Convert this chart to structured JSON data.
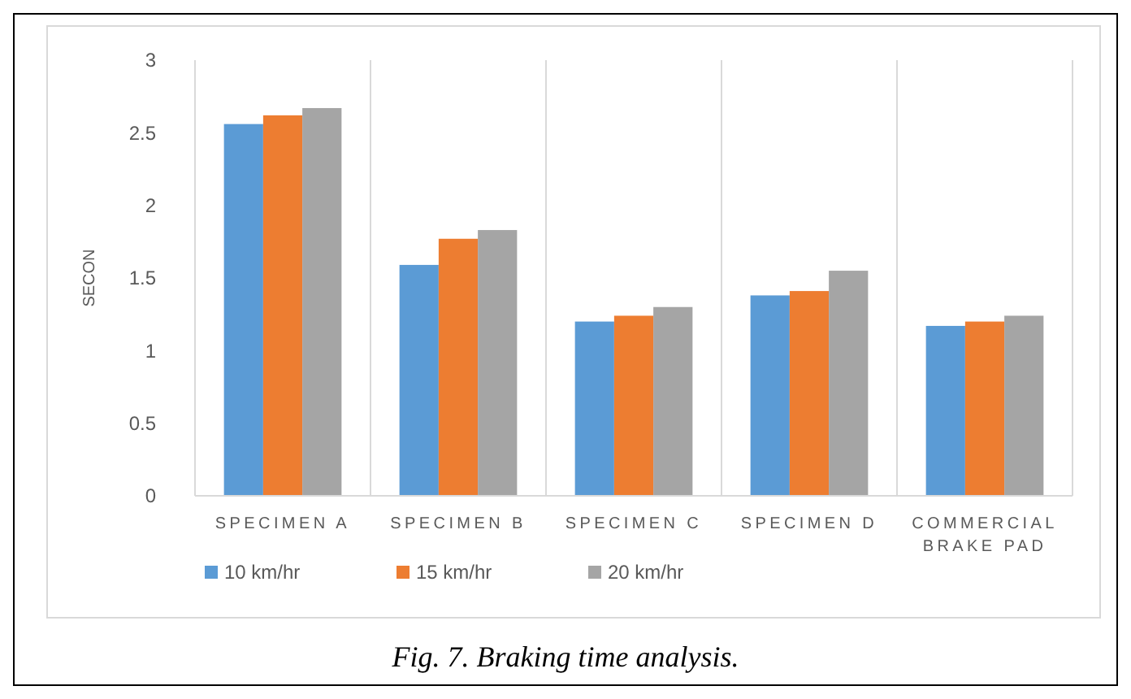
{
  "chart_data": {
    "type": "bar",
    "ylabel": "SECON",
    "categories": [
      "SPECIMEN A",
      "SPECIMEN B",
      "SPECIMEN C",
      "SPECIMEN D",
      "COMMERCIAL BRAKE PAD"
    ],
    "series": [
      {
        "name": "10 km/hr",
        "color": "#5b9bd5",
        "values": [
          2.56,
          1.59,
          1.2,
          1.38,
          1.17
        ]
      },
      {
        "name": "15 km/hr",
        "color": "#ed7d31",
        "values": [
          2.62,
          1.77,
          1.24,
          1.41,
          1.2
        ]
      },
      {
        "name": "20 km/hr",
        "color": "#a5a5a5",
        "values": [
          2.67,
          1.83,
          1.3,
          1.55,
          1.24
        ]
      }
    ],
    "ylim": [
      0,
      3
    ],
    "yticks": [
      0,
      0.5,
      1,
      1.5,
      2,
      2.5,
      3
    ],
    "grid": "x",
    "legend": "bottom",
    "annotations": [
      "Fig. 7. Braking time analysis."
    ]
  }
}
